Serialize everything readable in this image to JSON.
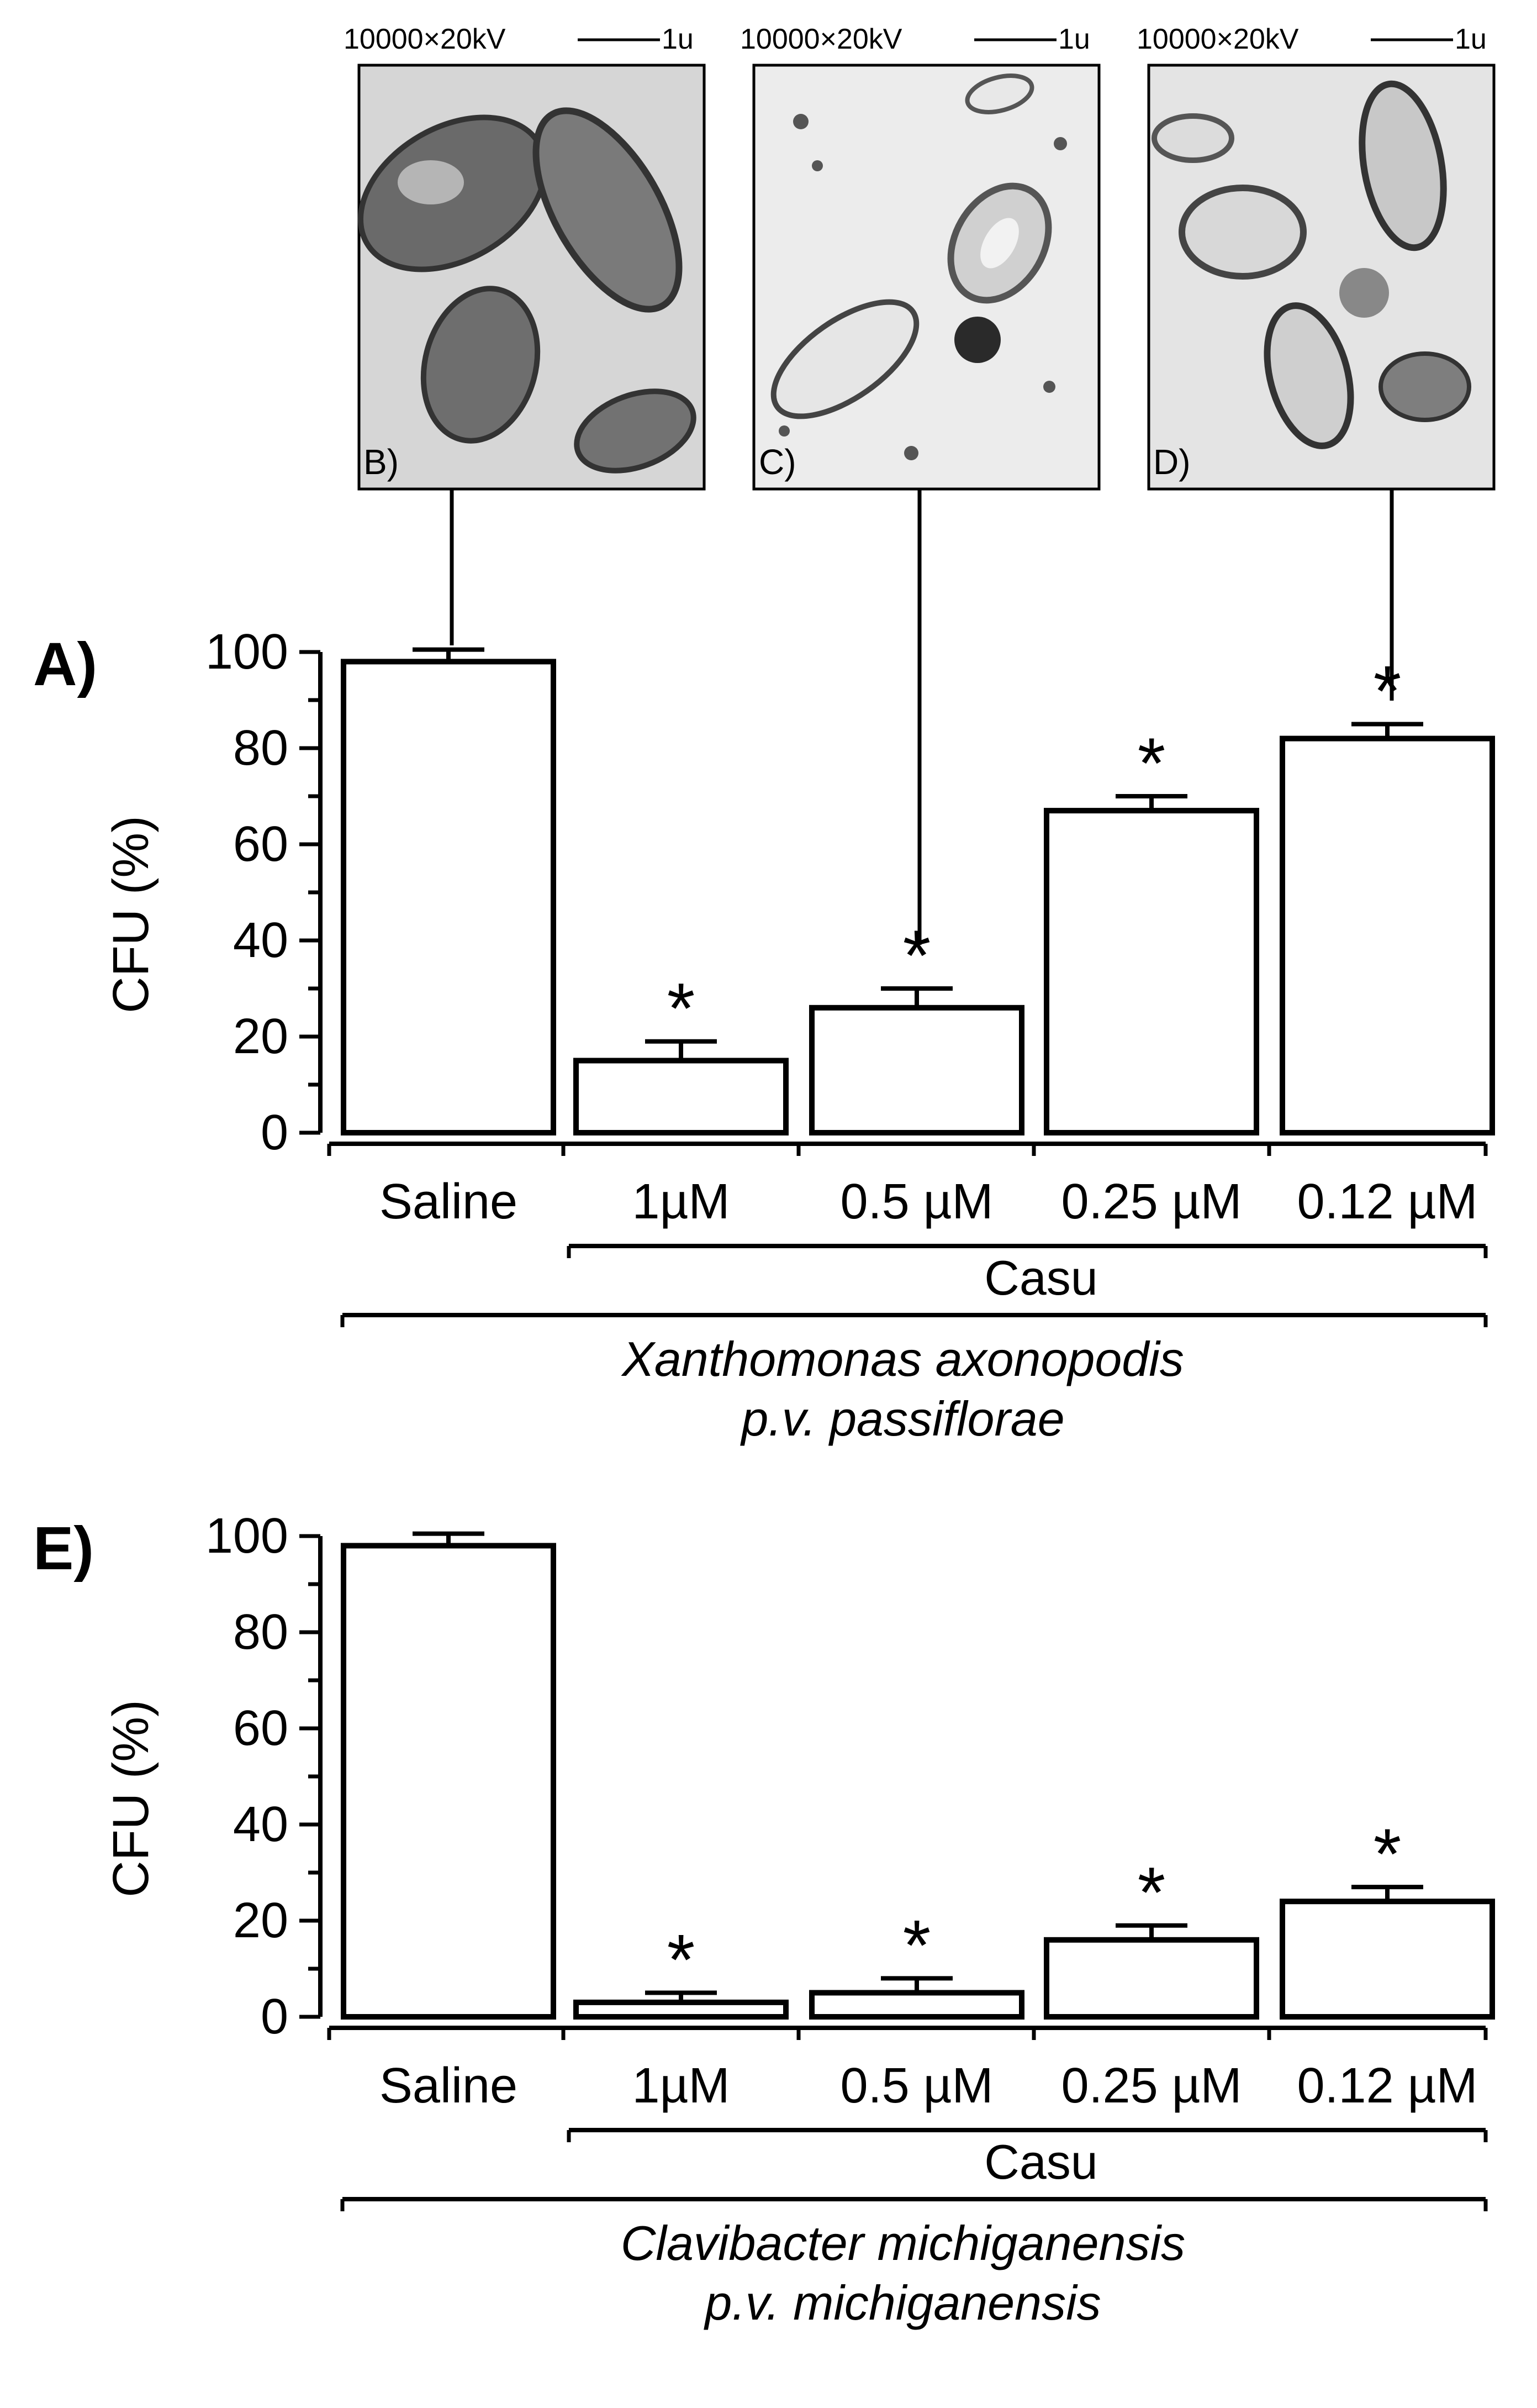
{
  "micrographs": [
    {
      "id": "B",
      "label": "B)",
      "scale_label": "10000×20kV",
      "scale_unit": "1u",
      "links_to_category": "Saline"
    },
    {
      "id": "C",
      "label": "C)",
      "scale_label": "10000×20kV",
      "scale_unit": "1u",
      "links_to_category": "0.5 µM"
    },
    {
      "id": "D",
      "label": "D)",
      "scale_label": "10000×20kV",
      "scale_unit": "1u",
      "links_to_category": "0.12 µM"
    }
  ],
  "chart_data": [
    {
      "panel": "A)",
      "type": "bar",
      "categories": [
        "Saline",
        "1µM",
        "0.5 µM",
        "0.25 µM",
        "0.12 µM"
      ],
      "values": [
        98,
        15,
        26,
        67,
        82
      ],
      "errors": [
        2.5,
        4,
        4,
        3,
        3
      ],
      "significance": [
        "",
        "*",
        "*",
        "*",
        "*"
      ],
      "ylabel": "CFU (%)",
      "ylim": [
        0,
        100
      ],
      "yticks": [
        0,
        20,
        40,
        60,
        80,
        100
      ],
      "group_label": "Casu",
      "organism_line1": "Xanthomonas axonopodis",
      "organism_line2": "p.v. passiflorae"
    },
    {
      "panel": "E)",
      "type": "bar",
      "categories": [
        "Saline",
        "1µM",
        "0.5 µM",
        "0.25 µM",
        "0.12 µM"
      ],
      "values": [
        98,
        3,
        5,
        16,
        24
      ],
      "errors": [
        2.5,
        2,
        3,
        3,
        3
      ],
      "significance": [
        "",
        "*",
        "*",
        "*",
        "*"
      ],
      "ylabel": "CFU (%)",
      "ylim": [
        0,
        100
      ],
      "yticks": [
        0,
        20,
        40,
        60,
        80,
        100
      ],
      "group_label": "Casu",
      "organism_line1": "Clavibacter michiganensis",
      "organism_line2": "p.v. michiganensis"
    }
  ]
}
